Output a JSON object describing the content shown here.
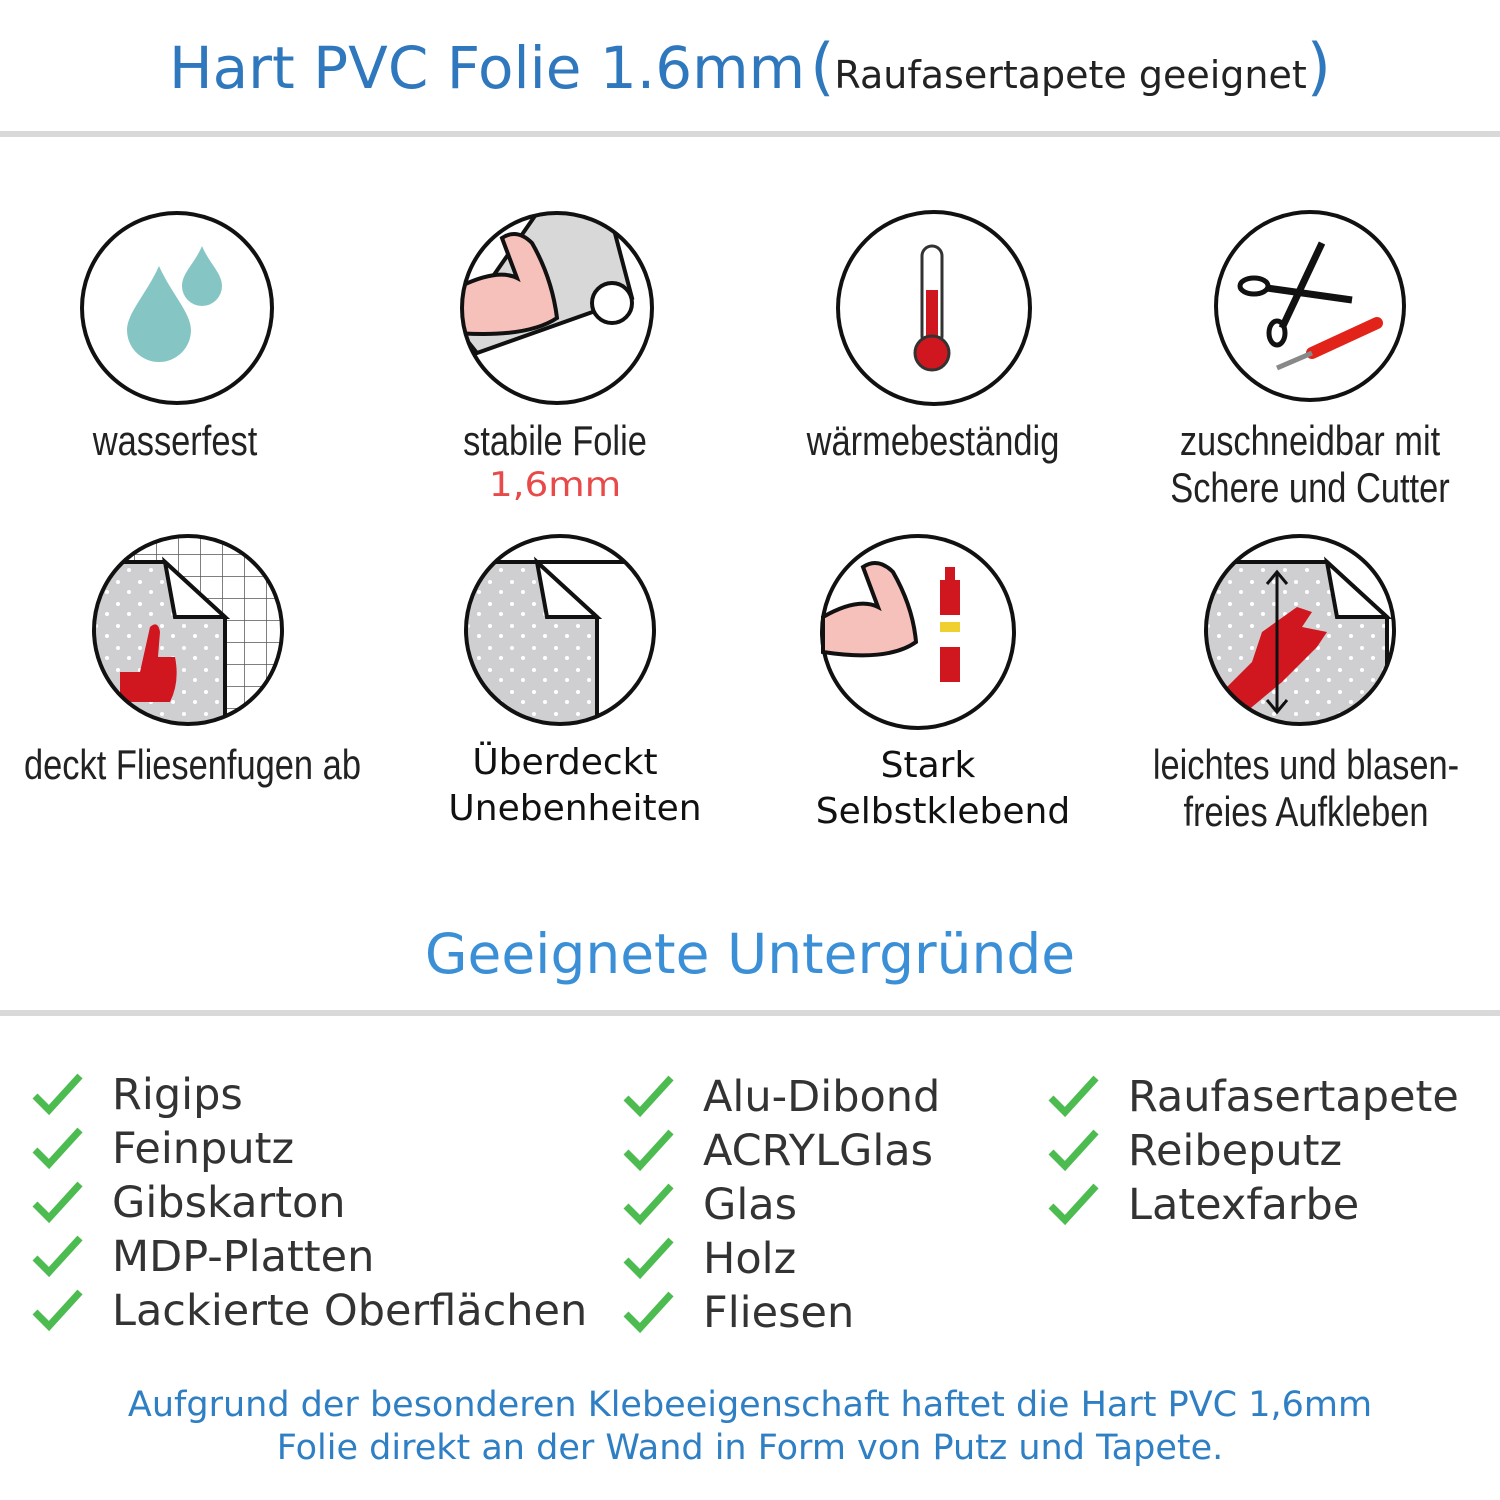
{
  "header": {
    "title": "Hart PVC Folie 1.6mm",
    "subtitle_open": "(",
    "subtitle": "Raufasertapete geeignet",
    "subtitle_close": ")"
  },
  "features": [
    {
      "icon": "water-drops-icon",
      "label": "wasserfest"
    },
    {
      "icon": "strong-arm-foil-icon",
      "label": "stabile Folie",
      "sublabel": "1,6mm"
    },
    {
      "icon": "thermometer-icon",
      "label": "wärmebeständig"
    },
    {
      "icon": "scissors-cutter-icon",
      "label": "zuschneidbar mit",
      "label2": "Schere und Cutter"
    },
    {
      "icon": "tile-thumbs-up-icon",
      "label": "deckt Fliesenfugen ab"
    },
    {
      "icon": "foil-peel-icon",
      "label": "Überdeckt",
      "label2": "Unebenheiten"
    },
    {
      "icon": "arm-glue-icon",
      "label": "Stark",
      "label2": "Selbstklebend"
    },
    {
      "icon": "hand-smooth-icon",
      "label": "leichtes und blasen-",
      "label2": "freies Aufkleben"
    }
  ],
  "surfaces": {
    "title": "Geeignete Untergründe",
    "columns": [
      [
        "Rigips",
        "Feinputz",
        "Gibskarton",
        "MDP-Platten",
        "Lackierte Oberflächen"
      ],
      [
        "Alu-Dibond",
        "ACRYLGlas",
        "Glas",
        "Holz",
        "Fliesen"
      ],
      [
        "Raufasertapete",
        "Reibeputz",
        "Latexfarbe"
      ]
    ]
  },
  "footer": {
    "line1": "Aufgrund der besonderen Klebeeigenschaft haftet die Hart PVC 1,6mm",
    "line2": "Folie direkt an der Wand in Form von Putz und Tapete."
  },
  "colors": {
    "blue": "#2f78bd",
    "check": "#4cbb50",
    "red": "#d0161f",
    "accent_red": "#e84a4a"
  }
}
